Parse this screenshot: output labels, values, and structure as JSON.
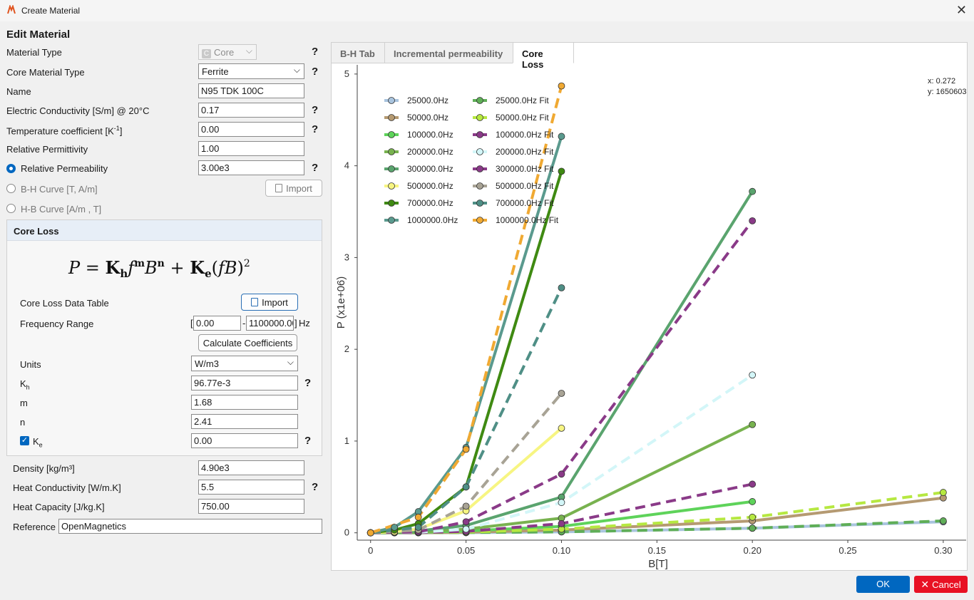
{
  "window": {
    "title": "Create Material"
  },
  "form": {
    "heading": "Edit Material",
    "material_type": {
      "label": "Material Type",
      "value": "Core",
      "icon_letter": "C"
    },
    "core_material_type": {
      "label": "Core Material Type",
      "value": "Ferrite"
    },
    "name": {
      "label": "Name",
      "value": "N95 TDK 100C"
    },
    "conductivity": {
      "label": "Electric Conductivity [S/m] @ 20°C",
      "value": "0.17"
    },
    "temp_coef": {
      "label_main": "Temperature coefficient [K",
      "label_sup": "-1",
      "label_end": "]",
      "value": "0.00"
    },
    "permittivity": {
      "label": "Relative Permittivity",
      "value": "1.00"
    },
    "permeability": {
      "label": "Relative Permeability",
      "value": "3.00e3"
    },
    "bh_curve": {
      "label": "B-H Curve [T, A/m]",
      "button": "Import"
    },
    "hb_curve": {
      "label": "H-B Curve [A/m , T]"
    },
    "density": {
      "label": "Density [kg/m³]",
      "value": "4.90e3"
    },
    "heat_conductivity": {
      "label": "Heat Conductivity [W/m.K]",
      "value": "5.5"
    },
    "heat_capacity": {
      "label": "Heat Capacity [J/kg.K]",
      "value": "750.00"
    },
    "reference": {
      "label": "Reference",
      "value": "OpenMagnetics"
    },
    "help": "?"
  },
  "core_loss": {
    "title": "Core Loss",
    "data_table_label": "Core Loss Data Table",
    "import_button": "Import",
    "freq_range_label": "Frequency Range",
    "freq_min": "0.00",
    "freq_max": "1100000.00",
    "freq_unit": "Hz",
    "bracket_open": "[",
    "bracket_close": "]",
    "range_dash": "-",
    "calc_button": "Calculate Coefficients",
    "units_label": "Units",
    "units_value": "W/m3",
    "kh_label": "K",
    "kh_sub": "h",
    "kh_value": "96.77e-3",
    "m_label": "m",
    "m_value": "1.68",
    "n_label": "n",
    "n_value": "2.41",
    "ke_label": "K",
    "ke_sub": "e",
    "ke_value": "0.00"
  },
  "tabs": [
    {
      "label": "B-H Tab",
      "active": false
    },
    {
      "label": "Incremental permeability",
      "active": false
    },
    {
      "label": "Core Loss",
      "active": true
    }
  ],
  "buttons": {
    "ok": "OK",
    "cancel": "Cancel"
  },
  "chart_data": {
    "type": "line",
    "xlabel": "B[T]",
    "ylabel": "P (x1e+06)",
    "xlim": [
      -0.007,
      0.312
    ],
    "ylim": [
      -0.08,
      5.1
    ],
    "xticks": [
      "0",
      "0.05",
      "0.10",
      "0.15",
      "0.20",
      "0.25",
      "0.30"
    ],
    "xtick_values": [
      0,
      0.05,
      0.1,
      0.15,
      0.2,
      0.25,
      0.3
    ],
    "yticks": [
      "0",
      "1",
      "2",
      "3",
      "4",
      "5"
    ],
    "ytick_values": [
      0,
      1,
      2,
      3,
      4,
      5
    ],
    "readout": {
      "x": "x: 0.272",
      "y": "y: 1650603"
    },
    "legend_position": "top-left",
    "series": [
      {
        "name": "25000.0Hz",
        "color": "#a9c4de",
        "dashed": false,
        "x": [
          0,
          0.0125,
          0.025,
          0.05,
          0.1,
          0.2,
          0.3
        ],
        "y": [
          0,
          0.0,
          0.0,
          0.002,
          0.01,
          0.05,
          0.12
        ]
      },
      {
        "name": "50000.0Hz",
        "color": "#b59a72",
        "dashed": false,
        "x": [
          0,
          0.0125,
          0.025,
          0.05,
          0.1,
          0.2,
          0.3
        ],
        "y": [
          0,
          0.0,
          0.001,
          0.005,
          0.03,
          0.13,
          0.38
        ]
      },
      {
        "name": "100000.0Hz",
        "color": "#5ed35a",
        "dashed": false,
        "x": [
          0,
          0.0125,
          0.025,
          0.05,
          0.1,
          0.2
        ],
        "y": [
          0,
          0.001,
          0.004,
          0.02,
          0.07,
          0.34
        ]
      },
      {
        "name": "200000.0Hz",
        "color": "#78b24f",
        "dashed": false,
        "x": [
          0,
          0.0125,
          0.025,
          0.05,
          0.1,
          0.2
        ],
        "y": [
          0,
          0.002,
          0.008,
          0.04,
          0.16,
          1.18
        ]
      },
      {
        "name": "300000.0Hz",
        "color": "#5aa46e",
        "dashed": false,
        "x": [
          0,
          0.0125,
          0.025,
          0.05,
          0.1,
          0.2
        ],
        "y": [
          0,
          0.005,
          0.02,
          0.08,
          0.39,
          3.72
        ]
      },
      {
        "name": "500000.0Hz",
        "color": "#f7f582",
        "dashed": false,
        "x": [
          0,
          0.0125,
          0.025,
          0.05,
          0.1
        ],
        "y": [
          0,
          0.01,
          0.04,
          0.24,
          1.14
        ]
      },
      {
        "name": "700000.0Hz",
        "color": "#3f8a12",
        "dashed": false,
        "x": [
          0,
          0.0125,
          0.025,
          0.05,
          0.1
        ],
        "y": [
          0,
          0.03,
          0.1,
          0.5,
          3.94
        ]
      },
      {
        "name": "1000000.0Hz",
        "color": "#5a9a8e",
        "dashed": false,
        "x": [
          0,
          0.0125,
          0.025,
          0.05,
          0.1
        ],
        "y": [
          0,
          0.06,
          0.23,
          0.93,
          4.32
        ]
      },
      {
        "name": "25000.0Hz Fit",
        "color": "#5fae57",
        "dashed": true,
        "x": [
          0,
          0.025,
          0.05,
          0.1,
          0.2,
          0.3
        ],
        "y": [
          0,
          0.001,
          0.003,
          0.01,
          0.05,
          0.13
        ]
      },
      {
        "name": "50000.0Hz Fit",
        "color": "#b6e841",
        "dashed": true,
        "x": [
          0,
          0.025,
          0.05,
          0.1,
          0.2,
          0.3
        ],
        "y": [
          0,
          0.001,
          0.007,
          0.04,
          0.17,
          0.44
        ]
      },
      {
        "name": "100000.0Hz Fit",
        "color": "#8a3a88",
        "dashed": true,
        "x": [
          0,
          0.025,
          0.05,
          0.1,
          0.2
        ],
        "y": [
          0,
          0.002,
          0.015,
          0.1,
          0.53
        ]
      },
      {
        "name": "200000.0Hz Fit",
        "color": "#d3f6f8",
        "dashed": true,
        "x": [
          0,
          0.025,
          0.05,
          0.1,
          0.2
        ],
        "y": [
          0,
          0.005,
          0.04,
          0.33,
          1.72
        ]
      },
      {
        "name": "300000.0Hz Fit",
        "color": "#8a3a88",
        "dashed": true,
        "x": [
          0,
          0.025,
          0.05,
          0.1,
          0.2
        ],
        "y": [
          0,
          0.01,
          0.12,
          0.64,
          3.4
        ]
      },
      {
        "name": "500000.0Hz Fit",
        "color": "#a8a395",
        "dashed": true,
        "x": [
          0,
          0.025,
          0.05,
          0.1
        ],
        "y": [
          0,
          0.03,
          0.29,
          1.52
        ]
      },
      {
        "name": "700000.0Hz Fit",
        "color": "#4f8f86",
        "dashed": true,
        "x": [
          0,
          0.025,
          0.05,
          0.1
        ],
        "y": [
          0,
          0.06,
          0.5,
          2.67
        ]
      },
      {
        "name": "1000000.0Hz Fit",
        "color": "#f0a932",
        "dashed": true,
        "x": [
          0,
          0.025,
          0.05,
          0.1
        ],
        "y": [
          0,
          0.17,
          0.91,
          4.87
        ]
      }
    ]
  }
}
